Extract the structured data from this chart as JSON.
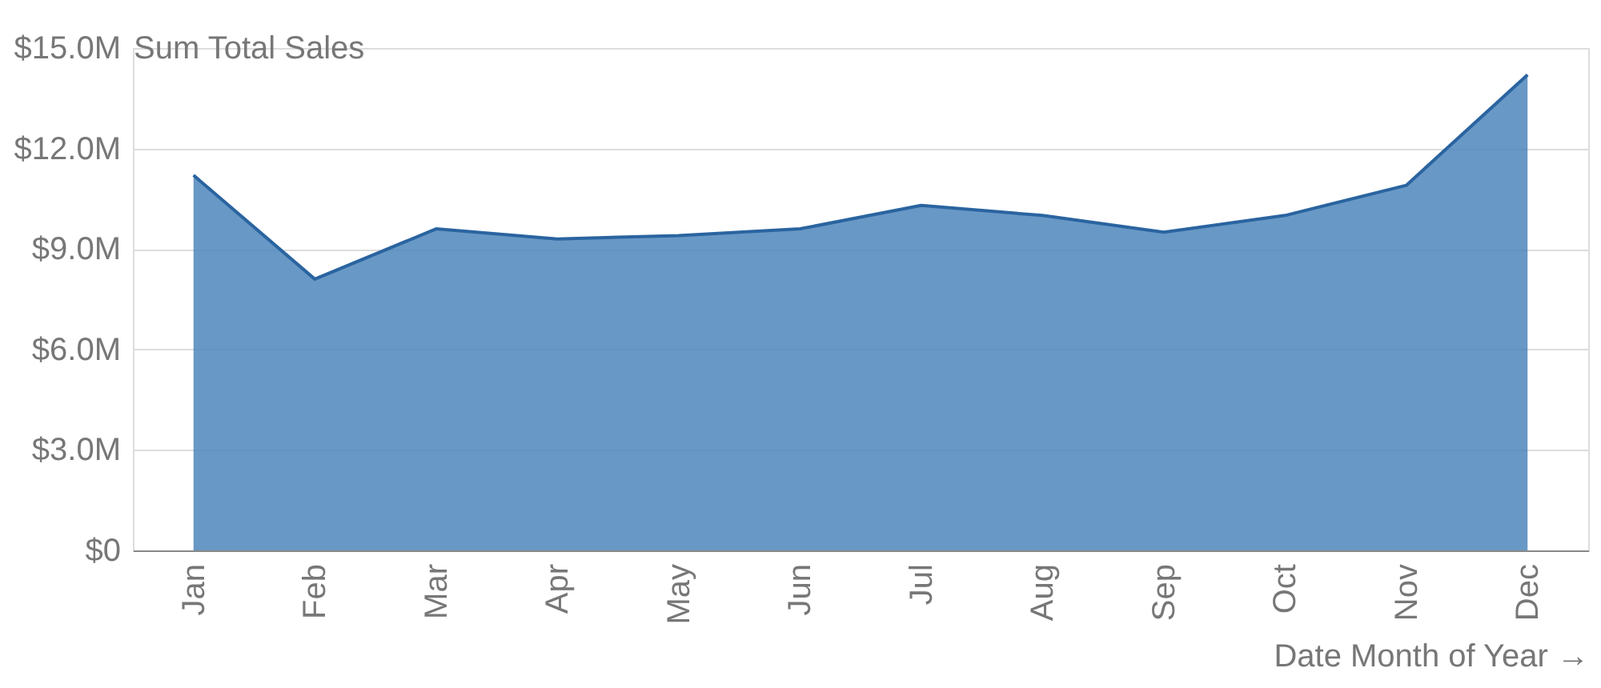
{
  "chart_data": {
    "type": "area",
    "xlabel": "Date Month of Year →",
    "ylabel": "Sum Total Sales",
    "categories": [
      "Jan",
      "Feb",
      "Mar",
      "Apr",
      "May",
      "Jun",
      "Jul",
      "Aug",
      "Sep",
      "Oct",
      "Nov",
      "Dec"
    ],
    "series": [
      {
        "color": "#4d86bb",
        "values": [
          11.2,
          8.1,
          9.6,
          9.3,
          9.4,
          9.6,
          10.3,
          10.0,
          9.5,
          10.0,
          10.9,
          14.2
        ]
      }
    ],
    "ylim": [
      0,
      15
    ],
    "yticks": [
      {
        "value": 0,
        "label": "$0"
      },
      {
        "value": 3,
        "label": "$3.0M"
      },
      {
        "value": 6,
        "label": "$6.0M"
      },
      {
        "value": 9,
        "label": "$9.0M"
      },
      {
        "value": 12,
        "label": "$12.0M"
      },
      {
        "value": 15,
        "label": "$15.0M"
      }
    ],
    "grid": "y"
  }
}
